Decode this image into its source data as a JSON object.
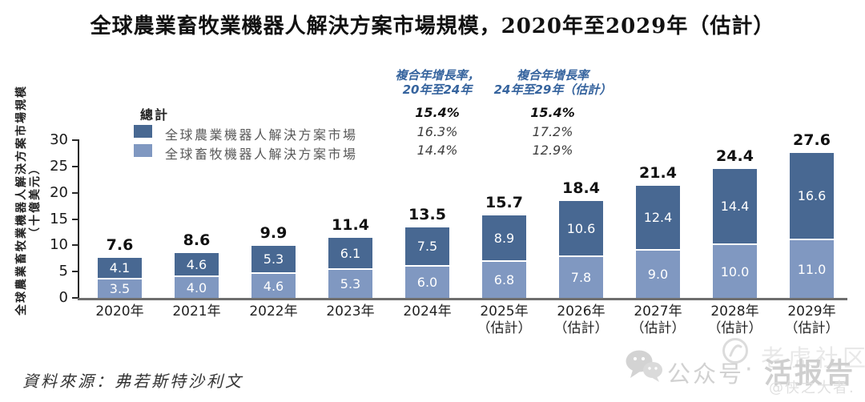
{
  "title": "全球農業畜牧業機器人解決方案市場規模，2020年至2029年（估計）",
  "y_axis": {
    "label": "全球農業畜牧業機器人解決方案市場規模",
    "unit": "（十億美元）"
  },
  "legend": {
    "total_label": "總計",
    "items": [
      {
        "label": "全球農業機器人解決方案市場"
      },
      {
        "label": "全球畜牧機器人解決方案市場"
      }
    ]
  },
  "cagr": {
    "col1": {
      "line1": "複合年增長率，",
      "line2": "20年至24年"
    },
    "col2": {
      "line1": "複合年增長率",
      "line2": "24年至29年（估計）"
    },
    "total": {
      "c1": "15.4%",
      "c2": "15.4%"
    },
    "agriculture": {
      "c1": "16.3%",
      "c2": "17.2%"
    },
    "livestock": {
      "c1": "14.4%",
      "c2": "12.9%"
    }
  },
  "source": "資料來源：弗若斯特沙利文",
  "watermark": {
    "label": "公众号",
    "separator": "·",
    "brand_back": "老虎社区",
    "brand": "活报告",
    "handle": "@侠之大者."
  },
  "colors": {
    "agriculture_dark_blue": "#486892",
    "livestock_light_blue": "#8098C1",
    "cagr_header_blue": "#36649e",
    "x_axis_gray": "#6e6e6e",
    "axis_black": "#2a2a2a"
  },
  "chart_data": {
    "type": "bar",
    "stacked": true,
    "title": "全球農業畜牧業機器人解決方案市場規模，2020年至2029年（估計）",
    "ylabel": "全球農業畜牧業機器人解決方案市場規模（十億美元）",
    "ylim": [
      0,
      30
    ],
    "yticks": [
      0,
      5,
      10,
      15,
      20,
      25,
      30
    ],
    "grid": false,
    "legend_position": "top-left",
    "categories": [
      {
        "year": "2020年",
        "note": ""
      },
      {
        "year": "2021年",
        "note": ""
      },
      {
        "year": "2022年",
        "note": ""
      },
      {
        "year": "2023年",
        "note": ""
      },
      {
        "year": "2024年",
        "note": ""
      },
      {
        "year": "2025年",
        "note": "（估計）"
      },
      {
        "year": "2026年",
        "note": "（估計）"
      },
      {
        "year": "2027年",
        "note": "（估計）"
      },
      {
        "year": "2028年",
        "note": "（估計）"
      },
      {
        "year": "2029年",
        "note": "（估計）"
      }
    ],
    "series": [
      {
        "name": "全球農業機器人解決方案市場",
        "stack_position": "top",
        "color": "#486892",
        "values": [
          4.1,
          4.6,
          5.3,
          6.1,
          7.5,
          8.9,
          10.6,
          12.4,
          14.4,
          16.6
        ]
      },
      {
        "name": "全球畜牧機器人解決方案市場",
        "stack_position": "bottom",
        "color": "#8098C1",
        "values": [
          3.5,
          4.0,
          4.6,
          5.3,
          6.0,
          6.8,
          7.8,
          9.0,
          10.0,
          11.0
        ]
      }
    ],
    "totals": [
      7.6,
      8.6,
      9.9,
      11.4,
      13.5,
      15.7,
      18.4,
      21.4,
      24.4,
      27.6
    ]
  }
}
